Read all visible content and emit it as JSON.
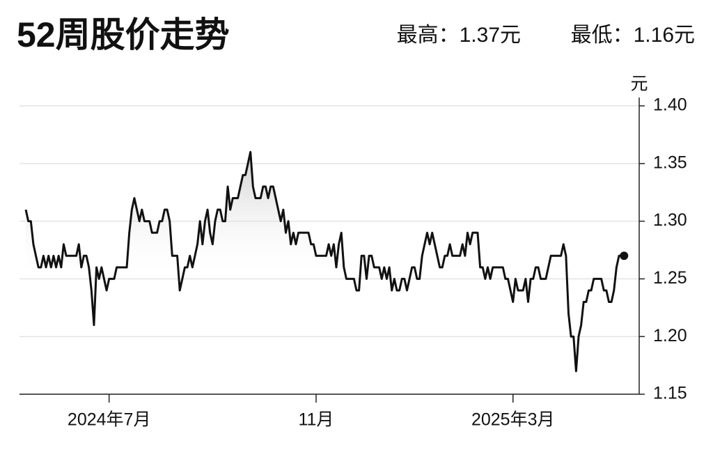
{
  "chart_data": {
    "type": "line",
    "title": "52周股价走势",
    "subtitle": [
      "最高：1.37元",
      "最低：1.16元"
    ],
    "y_label": "元",
    "color": "#111111",
    "grid": true,
    "xlim": [
      -2.5,
      243
    ],
    "xticks": [
      {
        "value": 33,
        "label": "2024年7月"
      },
      {
        "value": 115,
        "label": "11月"
      },
      {
        "value": 193,
        "label": "2025年3月"
      }
    ],
    "ylim": [
      1.15,
      1.4
    ],
    "yticks": [
      1.15,
      {
        "value": 1.2,
        "label": "1.20"
      },
      1.25,
      {
        "value": 1.3,
        "label": "1.30"
      },
      1.35,
      {
        "value": 1.4,
        "label": "1.40"
      }
    ],
    "values": [
      1.31,
      1.3,
      1.3,
      1.28,
      1.27,
      1.26,
      1.26,
      1.27,
      1.26,
      1.27,
      1.26,
      1.27,
      1.26,
      1.27,
      1.26,
      1.28,
      1.27,
      1.27,
      1.27,
      1.27,
      1.27,
      1.28,
      1.26,
      1.27,
      1.27,
      1.26,
      1.24,
      1.21,
      1.26,
      1.25,
      1.26,
      1.25,
      1.24,
      1.25,
      1.25,
      1.25,
      1.26,
      1.26,
      1.26,
      1.26,
      1.26,
      1.29,
      1.31,
      1.32,
      1.31,
      1.3,
      1.31,
      1.3,
      1.3,
      1.3,
      1.29,
      1.29,
      1.29,
      1.3,
      1.3,
      1.31,
      1.31,
      1.3,
      1.27,
      1.27,
      1.27,
      1.24,
      1.25,
      1.26,
      1.26,
      1.27,
      1.26,
      1.27,
      1.28,
      1.3,
      1.28,
      1.3,
      1.31,
      1.29,
      1.28,
      1.3,
      1.31,
      1.31,
      1.3,
      1.3,
      1.33,
      1.31,
      1.32,
      1.32,
      1.32,
      1.33,
      1.34,
      1.34,
      1.35,
      1.36,
      1.33,
      1.32,
      1.32,
      1.32,
      1.33,
      1.33,
      1.32,
      1.33,
      1.33,
      1.32,
      1.31,
      1.3,
      1.31,
      1.29,
      1.3,
      1.28,
      1.29,
      1.28,
      1.29,
      1.29,
      1.29,
      1.29,
      1.29,
      1.28,
      1.28,
      1.27,
      1.27,
      1.27,
      1.27,
      1.27,
      1.28,
      1.27,
      1.28,
      1.26,
      1.28,
      1.29,
      1.26,
      1.25,
      1.25,
      1.25,
      1.25,
      1.24,
      1.24,
      1.27,
      1.27,
      1.25,
      1.27,
      1.27,
      1.26,
      1.26,
      1.26,
      1.25,
      1.26,
      1.25,
      1.26,
      1.24,
      1.25,
      1.24,
      1.24,
      1.25,
      1.25,
      1.24,
      1.25,
      1.26,
      1.26,
      1.25,
      1.25,
      1.27,
      1.28,
      1.29,
      1.28,
      1.29,
      1.28,
      1.27,
      1.26,
      1.26,
      1.27,
      1.27,
      1.28,
      1.27,
      1.27,
      1.27,
      1.27,
      1.28,
      1.27,
      1.29,
      1.28,
      1.29,
      1.29,
      1.29,
      1.26,
      1.26,
      1.25,
      1.26,
      1.25,
      1.26,
      1.26,
      1.26,
      1.26,
      1.26,
      1.25,
      1.25,
      1.24,
      1.23,
      1.25,
      1.24,
      1.24,
      1.24,
      1.25,
      1.23,
      1.25,
      1.25,
      1.26,
      1.26,
      1.25,
      1.25,
      1.25,
      1.26,
      1.27,
      1.27,
      1.27,
      1.27,
      1.27,
      1.28,
      1.27,
      1.22,
      1.2,
      1.2,
      1.17,
      1.2,
      1.21,
      1.23,
      1.23,
      1.24,
      1.24,
      1.25,
      1.25,
      1.25,
      1.25,
      1.24,
      1.24,
      1.23,
      1.23,
      1.24,
      1.26,
      1.27,
      1.27,
      1.27
    ]
  }
}
